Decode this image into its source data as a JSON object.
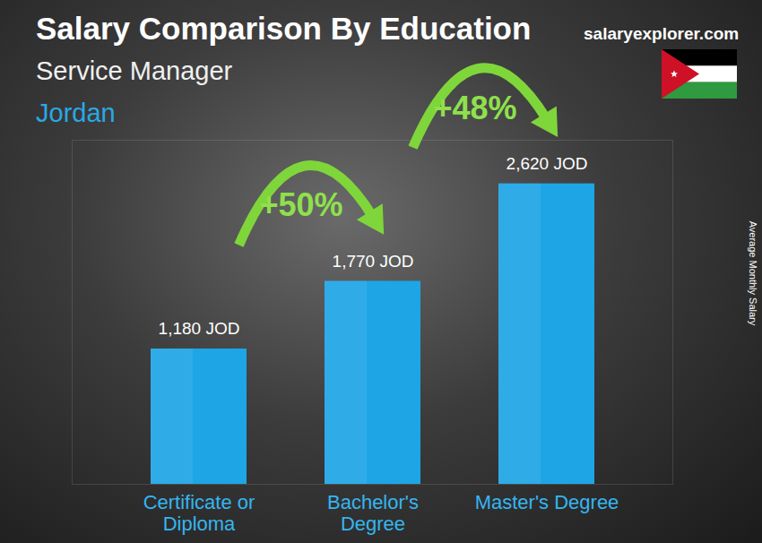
{
  "chart_data": {
    "type": "bar",
    "title": "Salary Comparison By Education",
    "subtitle": "Service Manager",
    "location": "Jordan",
    "source": "salaryexplorer.com",
    "y_label": "Average Monthly Salary",
    "categories": [
      "Certificate or Diploma",
      "Bachelor's Degree",
      "Master's Degree"
    ],
    "values": [
      1180,
      1770,
      2620
    ],
    "value_labels": [
      "1,180 JOD",
      "1,770 JOD",
      "2,620 JOD"
    ],
    "data_labels": true,
    "annotations": [
      "+50%",
      "+48%"
    ],
    "color": "#1ea5e6",
    "ylim": [
      0,
      3000
    ],
    "yticks": [],
    "tick_labels": "x"
  }
}
